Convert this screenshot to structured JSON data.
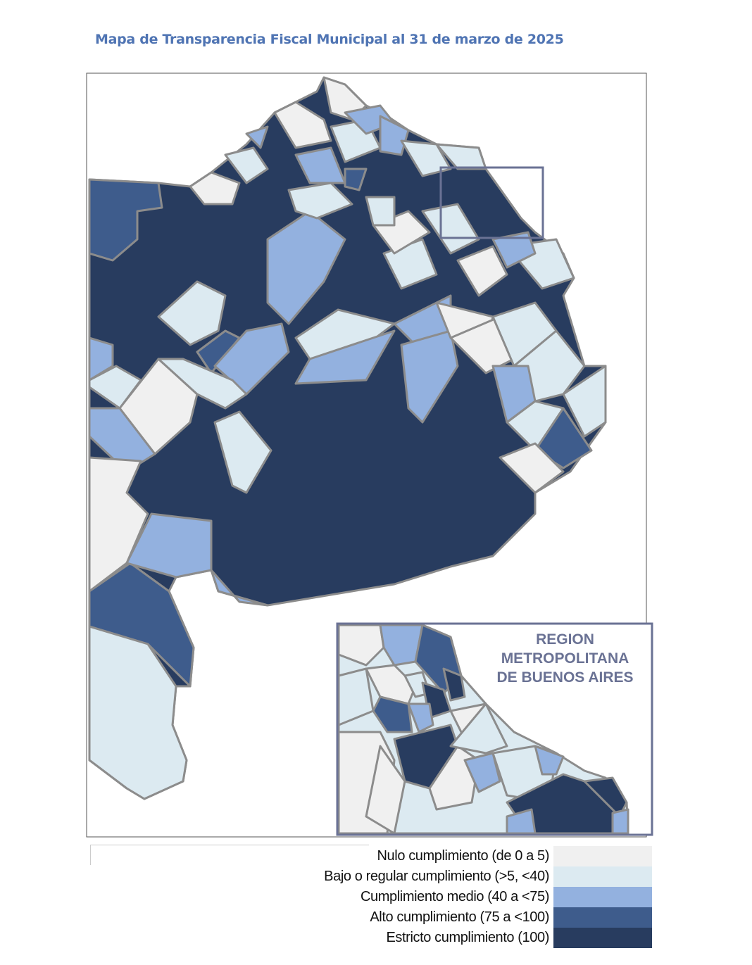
{
  "title": "Mapa de Transparencia Fiscal Municipal al 31 de marzo de 2025",
  "inset": {
    "label_lines": [
      "REGION",
      "METROPOLITANA",
      "DE BUENOS AIRES"
    ]
  },
  "legend": [
    {
      "label": "Nulo cumplimiento (de 0 a 5)",
      "color": "#f0f0f0"
    },
    {
      "label": "Bajo o regular cumplimiento (>5, <40)",
      "color": "#dceaf1"
    },
    {
      "label": "Cumplimiento medio (40 a <75)",
      "color": "#93b1df"
    },
    {
      "label": "Alto cumplimiento (75 a <100)",
      "color": "#3e5c8c"
    },
    {
      "label": "Estricto cumplimiento (100)",
      "color": "#283c5f"
    }
  ],
  "colors": {
    "border": "#8c8c8c",
    "frame": "#6a7294",
    "title": "#4f74b3"
  }
}
